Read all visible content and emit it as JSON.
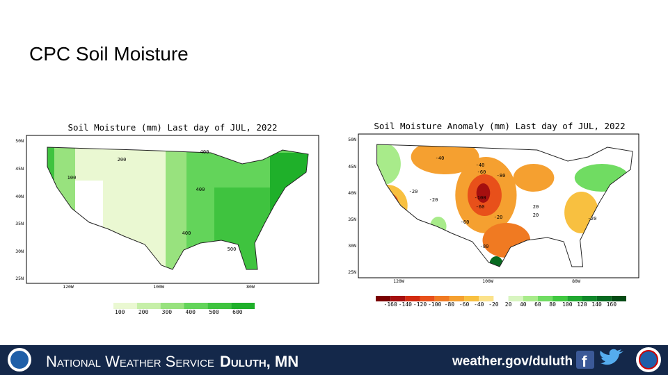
{
  "slide": {
    "title": "CPC Soil Moisture"
  },
  "maps": [
    {
      "title": "Soil Moisture (mm) Last day of JUL, 2022",
      "lat_labels": [
        "50N",
        "45N",
        "40N",
        "35N",
        "30N",
        "25N"
      ],
      "lon_labels": [
        "120W",
        "100W",
        "80W"
      ],
      "contour_labels": [
        "200",
        "100",
        "400",
        "400",
        "400",
        "500"
      ],
      "legend": {
        "labels": [
          "100",
          "200",
          "300",
          "400",
          "500",
          "600"
        ],
        "colors": [
          "#eaf8d2",
          "#c6efa8",
          "#98e27e",
          "#63d45a",
          "#3fc33f",
          "#1fb02a"
        ]
      }
    },
    {
      "title": "Soil Moisture Anomaly (mm) Last day of JUL, 2022",
      "lat_labels": [
        "50N",
        "45N",
        "40N",
        "35N",
        "30N",
        "25N"
      ],
      "lon_labels": [
        "120W",
        "100W",
        "80W"
      ],
      "contour_labels": [
        "-40",
        "-40",
        "-60",
        "-80",
        "-20",
        "-20",
        "-100",
        "-60",
        "-20",
        "-60",
        "-80",
        "20",
        "20",
        "-20"
      ],
      "legend": {
        "labels": [
          "-160",
          "-140",
          "-120",
          "-100",
          "-80",
          "-60",
          "-40",
          "-20",
          "20",
          "40",
          "60",
          "80",
          "100",
          "120",
          "140",
          "160"
        ],
        "colors": [
          "#7a0000",
          "#a50f0f",
          "#d22a10",
          "#e8501a",
          "#f07a22",
          "#f5a030",
          "#f8c040",
          "#fbe28a",
          "#ffffff",
          "#d8f5c0",
          "#a8eb8a",
          "#70dc62",
          "#40c840",
          "#20a830",
          "#10882a",
          "#086a20",
          "#044a14"
        ]
      }
    }
  ],
  "footer": {
    "agency": "National Weather Service",
    "office": "Duluth, MN",
    "url": "weather.gov/duluth"
  }
}
